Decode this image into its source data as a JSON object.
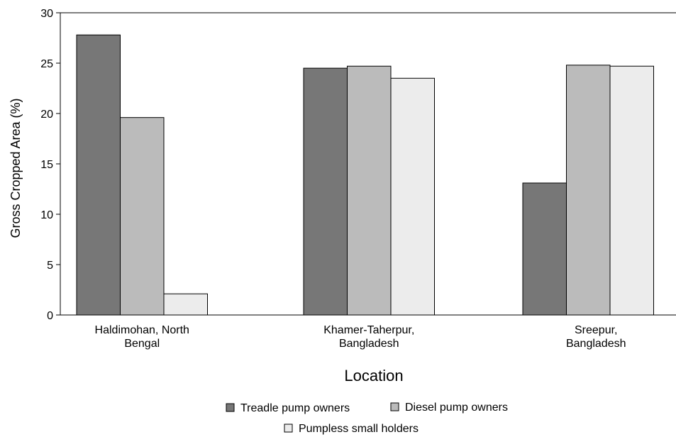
{
  "chart_data": {
    "type": "bar",
    "title": "",
    "xlabel": "Location",
    "ylabel": "Gross Cropped Area (%)",
    "ylim": [
      0,
      30
    ],
    "yticks": [
      0,
      5,
      10,
      15,
      20,
      25,
      30
    ],
    "grid": false,
    "legend_position": "bottom",
    "categories": [
      [
        "Haldimohan, North",
        "Bengal"
      ],
      [
        "Khamer-Taherpur,",
        "Bangladesh"
      ],
      [
        "Sreepur,",
        "Bangladesh"
      ]
    ],
    "series": [
      {
        "name": "Treadle pump owners",
        "color": "#777777",
        "values": [
          27.8,
          24.5,
          13.1
        ]
      },
      {
        "name": "Diesel pump owners",
        "color": "#bbbbbb",
        "values": [
          19.6,
          24.7,
          24.8
        ]
      },
      {
        "name": "Pumpless small holders",
        "color": "#ececec",
        "values": [
          2.1,
          23.5,
          24.7
        ]
      }
    ]
  }
}
